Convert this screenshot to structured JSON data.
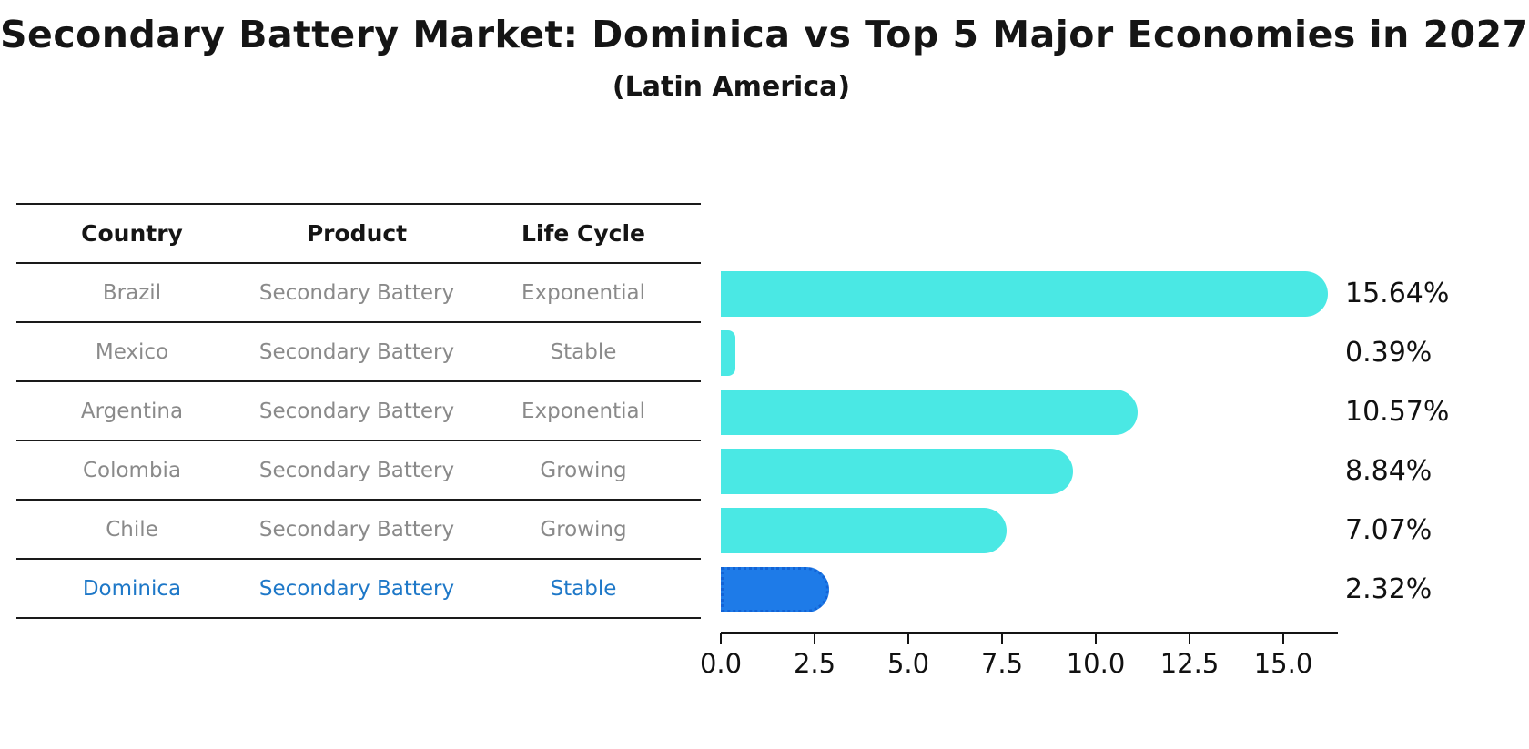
{
  "title": "Secondary Battery Market: Dominica vs Top 5 Major Economies in 2027",
  "subtitle": "(Latin America)",
  "table": {
    "headers": [
      "Country",
      "Product",
      "Life Cycle"
    ],
    "rows": [
      {
        "country": "Brazil",
        "product": "Secondary Battery",
        "life_cycle": "Exponential",
        "highlight": false
      },
      {
        "country": "Mexico",
        "product": "Secondary Battery",
        "life_cycle": "Stable",
        "highlight": false
      },
      {
        "country": "Argentina",
        "product": "Secondary Battery",
        "life_cycle": "Exponential",
        "highlight": false
      },
      {
        "country": "Colombia",
        "product": "Secondary Battery",
        "life_cycle": "Growing",
        "highlight": false
      },
      {
        "country": "Chile",
        "product": "Secondary Battery",
        "life_cycle": "Growing",
        "highlight": false
      },
      {
        "country": "Dominica",
        "product": "Secondary Battery",
        "life_cycle": "Stable",
        "highlight": true
      }
    ]
  },
  "chart_data": {
    "type": "bar",
    "orientation": "horizontal",
    "categories": [
      "Brazil",
      "Mexico",
      "Argentina",
      "Colombia",
      "Chile",
      "Dominica"
    ],
    "values": [
      15.64,
      0.39,
      10.57,
      8.84,
      7.07,
      2.32
    ],
    "value_labels": [
      "15.64%",
      "0.39%",
      "10.57%",
      "8.84%",
      "7.07%",
      "2.32%"
    ],
    "x_ticks": [
      "0.0",
      "2.5",
      "5.0",
      "7.5",
      "10.0",
      "12.5",
      "15.0"
    ],
    "xlim": [
      0,
      16.5
    ],
    "xlabel": "",
    "ylabel": "",
    "grid": false,
    "legend": false,
    "bar_color": "#4AE8E4",
    "highlight_color": "#1E7BE8",
    "highlight_border_color": "#1263D6",
    "highlight_index": 5,
    "highlight_text_color": "#1E78C8"
  }
}
